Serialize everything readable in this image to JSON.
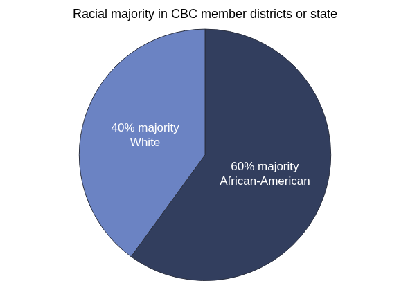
{
  "chart_data": {
    "type": "pie",
    "title": "Racial majority in CBC member districts or state",
    "values": [
      60,
      40
    ],
    "value_labels": [
      "60% majority African-American",
      "40% majority White"
    ],
    "colors": [
      "#323e5e",
      "#6b83c3"
    ],
    "data_labels": true
  }
}
